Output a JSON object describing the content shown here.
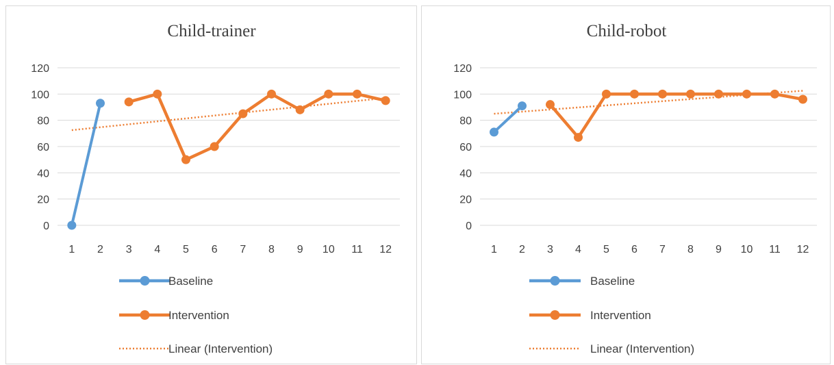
{
  "charts": [
    {
      "title": "Child-trainer",
      "legend": [
        "Baseline",
        "Intervention",
        "Linear (Intervention)"
      ]
    },
    {
      "title": "Child-robot",
      "legend": [
        "Baseline",
        "Intervention",
        "Linear (Intervention)"
      ]
    }
  ],
  "colors": {
    "baseline": "#5b9bd5",
    "intervention": "#ed7d31",
    "grid": "#d9d9d9",
    "text": "#404040"
  },
  "chart_data": [
    {
      "type": "line",
      "title": "Child-trainer",
      "categories": [
        "1",
        "2",
        "3",
        "4",
        "5",
        "6",
        "7",
        "8",
        "9",
        "10",
        "11",
        "12"
      ],
      "yticks": [
        "0",
        "20",
        "40",
        "60",
        "80",
        "100",
        "120"
      ],
      "ylim": [
        0,
        120
      ],
      "grid": true,
      "legend_position": "bottom",
      "series": [
        {
          "name": "Baseline",
          "x": [
            1,
            2
          ],
          "values": [
            0,
            93
          ]
        },
        {
          "name": "Intervention",
          "x": [
            3,
            4,
            5,
            6,
            7,
            8,
            9,
            10,
            11,
            12
          ],
          "values": [
            94,
            100,
            50,
            60,
            85,
            100,
            88,
            100,
            100,
            95
          ]
        },
        {
          "name": "Linear (Intervention)",
          "x": [
            1,
            12
          ],
          "values": [
            72.5,
            97
          ]
        }
      ]
    },
    {
      "type": "line",
      "title": "Child-robot",
      "categories": [
        "1",
        "2",
        "3",
        "4",
        "5",
        "6",
        "7",
        "8",
        "9",
        "10",
        "11",
        "12"
      ],
      "yticks": [
        "0",
        "20",
        "40",
        "60",
        "80",
        "100",
        "120"
      ],
      "ylim": [
        0,
        120
      ],
      "grid": true,
      "legend_position": "bottom",
      "series": [
        {
          "name": "Baseline",
          "x": [
            1,
            2
          ],
          "values": [
            71,
            91
          ]
        },
        {
          "name": "Intervention",
          "x": [
            3,
            4,
            5,
            6,
            7,
            8,
            9,
            10,
            11,
            12
          ],
          "values": [
            92,
            67,
            100,
            100,
            100,
            100,
            100,
            100,
            100,
            96
          ]
        },
        {
          "name": "Linear (Intervention)",
          "x": [
            1,
            12
          ],
          "values": [
            85,
            102.5
          ]
        }
      ]
    }
  ]
}
